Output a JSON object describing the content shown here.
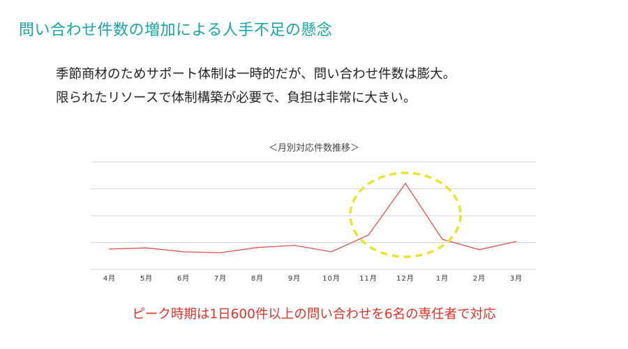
{
  "slide": {
    "title": "問い合わせ件数の増加による人手不足の懸念",
    "body_lines": [
      "季節商材のためサポート体制は一時的だが、問い合わせ件数は膨大。",
      "限られたリソースで体制構築が必要で、負担は非常に大きい。"
    ],
    "footer_note": "ピーク時期は1日600件以上の問い合わせを6名の専任者で対応"
  },
  "colors": {
    "title": "#1aa3a3",
    "body_text": "#222222",
    "series_line": "#d9534f",
    "highlight_ellipse": "#e6e62e",
    "footer_note": "#d9352b",
    "gridline": "#d6d6d6"
  },
  "chart_data": {
    "type": "line",
    "title": "＜月別対応件数推移＞",
    "categories": [
      "4月",
      "5月",
      "6月",
      "7月",
      "8月",
      "9月",
      "10月",
      "11月",
      "12月",
      "1月",
      "2月",
      "3月"
    ],
    "series": [
      {
        "values": [
          0.95,
          1.0,
          0.82,
          0.78,
          1.02,
          1.12,
          0.82,
          1.6,
          4.0,
          1.4,
          0.92,
          1.3
        ]
      }
    ],
    "ylim": [
      0,
      5
    ],
    "y_axis_labels_shown": false,
    "grid": true,
    "highlight": {
      "shape": "dashed-ellipse",
      "categories": [
        "11月",
        "12月",
        "1月"
      ]
    }
  }
}
